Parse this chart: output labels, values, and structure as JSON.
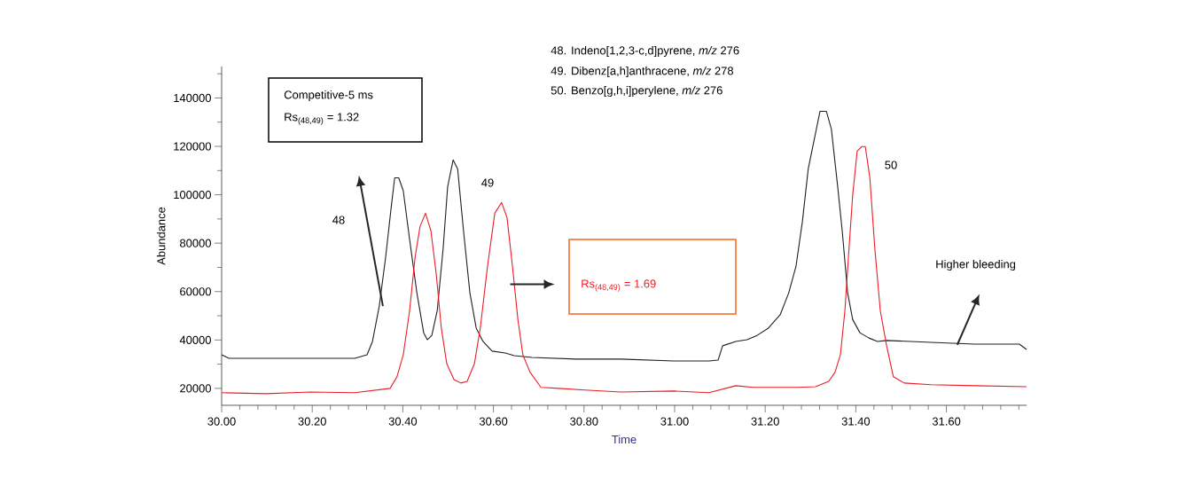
{
  "chart_data": {
    "type": "line",
    "xlabel": "Time",
    "ylabel": "Abundance",
    "xlim": [
      30,
      31.777
    ],
    "ylim": [
      13000,
      153000
    ],
    "xticks": [
      {
        "value": 30.0,
        "label": "30.00"
      },
      {
        "value": 30.04,
        "label": null
      },
      {
        "value": 30.08,
        "label": null
      },
      {
        "value": 30.12,
        "label": null
      },
      {
        "value": 30.16,
        "label": null
      },
      {
        "value": 30.2,
        "label": "30.20"
      },
      {
        "value": 30.24,
        "label": null
      },
      {
        "value": 30.28,
        "label": null
      },
      {
        "value": 30.32,
        "label": null
      },
      {
        "value": 30.36,
        "label": null
      },
      {
        "value": 30.4,
        "label": "30.40"
      },
      {
        "value": 30.44,
        "label": null
      },
      {
        "value": 30.48,
        "label": null
      },
      {
        "value": 30.52,
        "label": null
      },
      {
        "value": 30.56,
        "label": null
      },
      {
        "value": 30.6,
        "label": "30.60"
      },
      {
        "value": 30.64,
        "label": null
      },
      {
        "value": 30.68,
        "label": null
      },
      {
        "value": 30.72,
        "label": null
      },
      {
        "value": 30.76,
        "label": null
      },
      {
        "value": 30.8,
        "label": "30.80"
      },
      {
        "value": 30.84,
        "label": null
      },
      {
        "value": 30.88,
        "label": null
      },
      {
        "value": 30.92,
        "label": null
      },
      {
        "value": 30.96,
        "label": null
      },
      {
        "value": 31.0,
        "label": "31.00"
      },
      {
        "value": 31.04,
        "label": null
      },
      {
        "value": 31.08,
        "label": null
      },
      {
        "value": 31.12,
        "label": null
      },
      {
        "value": 31.16,
        "label": null
      },
      {
        "value": 31.2,
        "label": "31.20"
      },
      {
        "value": 31.24,
        "label": null
      },
      {
        "value": 31.28,
        "label": null
      },
      {
        "value": 31.32,
        "label": null
      },
      {
        "value": 31.36,
        "label": null
      },
      {
        "value": 31.4,
        "label": "31.40"
      },
      {
        "value": 31.44,
        "label": null
      },
      {
        "value": 31.48,
        "label": null
      },
      {
        "value": 31.52,
        "label": null
      },
      {
        "value": 31.56,
        "label": null
      },
      {
        "value": 31.6,
        "label": "31.60"
      },
      {
        "value": 31.64,
        "label": null
      },
      {
        "value": 31.68,
        "label": null
      },
      {
        "value": 31.72,
        "label": null
      },
      {
        "value": 31.76,
        "label": null
      }
    ],
    "yticks": [
      20000,
      {
        "value": 30000,
        "label": null
      },
      40000,
      {
        "value": 50000,
        "label": null
      },
      60000,
      {
        "value": 70000,
        "label": null
      },
      80000,
      {
        "value": 90000,
        "label": null
      },
      100000,
      {
        "value": 110000,
        "label": null
      },
      120000,
      {
        "value": 130000,
        "label": null
      },
      140000,
      {
        "value": 150000,
        "label": null
      }
    ],
    "series": [
      {
        "color": "#231f20",
        "x": [
          30,
          30.016,
          30.098,
          30.196,
          30.294,
          30.321,
          30.333,
          30.348,
          30.362,
          30.374,
          30.382,
          30.391,
          30.401,
          30.415,
          30.431,
          30.446,
          30.454,
          30.464,
          30.476,
          30.489,
          30.499,
          30.511,
          30.521,
          30.534,
          30.548,
          30.562,
          30.577,
          30.597,
          30.626,
          30.646,
          30.685,
          30.783,
          30.881,
          30.998,
          31.076,
          31.096,
          31.106,
          31.135,
          31.16,
          31.182,
          31.207,
          31.233,
          31.252,
          31.268,
          31.282,
          31.295,
          31.311,
          31.321,
          31.335,
          31.346,
          31.36,
          31.37,
          31.382,
          31.393,
          31.409,
          31.429,
          31.448,
          31.468,
          31.566,
          31.663,
          31.761,
          31.777
        ],
        "values": [
          33900,
          32400,
          32400,
          32400,
          32400,
          33900,
          39400,
          54000,
          74100,
          94300,
          107000,
          107000,
          101600,
          81500,
          59500,
          43000,
          40100,
          41900,
          52200,
          77800,
          103400,
          114400,
          110700,
          85100,
          59500,
          44900,
          39400,
          35400,
          34600,
          33500,
          32800,
          32100,
          32100,
          31300,
          31300,
          31700,
          37600,
          39400,
          40100,
          41900,
          44900,
          50400,
          59500,
          70500,
          88800,
          110700,
          125400,
          134500,
          134500,
          127200,
          103400,
          85100,
          59500,
          48500,
          43000,
          40800,
          39400,
          39800,
          39000,
          38300,
          38300,
          36100
        ]
      },
      {
        "color": "#ed1c24",
        "x": [
          30,
          30.098,
          30.196,
          30.294,
          30.372,
          30.387,
          30.401,
          30.415,
          30.427,
          30.438,
          30.45,
          30.462,
          30.474,
          30.485,
          30.497,
          30.513,
          30.528,
          30.542,
          30.558,
          30.571,
          30.587,
          30.603,
          30.618,
          30.63,
          30.642,
          30.654,
          30.665,
          30.681,
          30.705,
          30.744,
          30.802,
          30.881,
          30.998,
          31.076,
          31.135,
          31.174,
          31.272,
          31.311,
          31.34,
          31.354,
          31.366,
          31.376,
          31.385,
          31.393,
          31.403,
          31.413,
          31.421,
          31.431,
          31.442,
          31.454,
          31.468,
          31.483,
          31.507,
          31.566,
          31.663,
          31.777
        ],
        "values": [
          18200,
          17800,
          18500,
          18200,
          20000,
          24800,
          33900,
          52200,
          74100,
          86900,
          92400,
          85100,
          66800,
          44900,
          30200,
          23600,
          22200,
          22900,
          30200,
          44900,
          70500,
          92400,
          96800,
          90600,
          70500,
          48500,
          33900,
          26600,
          20400,
          20000,
          19300,
          18500,
          18900,
          18200,
          21100,
          20400,
          20400,
          20700,
          22900,
          26600,
          33900,
          52200,
          77800,
          99700,
          118000,
          119900,
          119900,
          107000,
          77800,
          52200,
          37600,
          24800,
          22200,
          21500,
          21100,
          20700
        ]
      }
    ],
    "annotations": [
      "48. Indeno[1,2,3-c,d]pyrene, *m/z* 276",
      "49. Dibenz[a,h]anthracene, *m/z* 278",
      "50. Benzo[g,h,i]perylene, *m/z* 276",
      "Competitive-5 ms",
      "Rs$_{(48,49)}$ = 1.32",
      "Rs$_{(48,49)}$ = 1.69",
      "Higher bleeding",
      "48",
      "49",
      "50"
    ]
  }
}
